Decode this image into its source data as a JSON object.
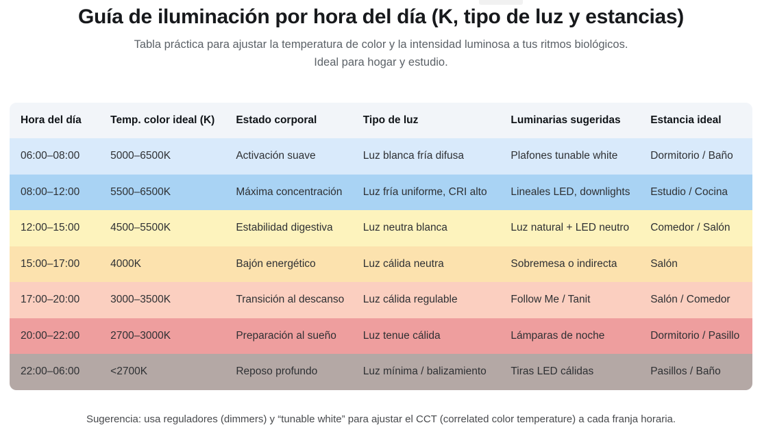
{
  "page": {
    "title": "Guía de iluminación por hora del día (K, tipo de luz y estancias)",
    "subtitle_line1": "Tabla práctica para ajustar la temperatura de color y la intensidad luminosa a tus ritmos biológicos.",
    "subtitle_line2": "Ideal para hogar y estudio.",
    "footnote": "Sugerencia: usa reguladores (dimmers) y “tunable white” para ajustar el CCT (correlated color temperature) a cada franja horaria."
  },
  "table": {
    "header_bg": "#f2f5f9",
    "headers": [
      "Hora del día",
      "Temp. color ideal (K)",
      "Estado corporal",
      "Tipo de luz",
      "Luminarias sugeridas",
      "Estancia ideal"
    ],
    "rows": [
      {
        "bg": "#d9eafb",
        "cells": [
          "06:00–08:00",
          "5000–6500K",
          "Activación suave",
          "Luz blanca fría difusa",
          "Plafones tunable white",
          "Dormitorio / Baño"
        ]
      },
      {
        "bg": "#a9d3f4",
        "cells": [
          "08:00–12:00",
          "5500–6500K",
          "Máxima concentración",
          "Luz fría uniforme, CRI alto",
          "Lineales LED, downlights",
          "Estudio / Cocina"
        ]
      },
      {
        "bg": "#fdf3bd",
        "cells": [
          "12:00–15:00",
          "4500–5500K",
          "Estabilidad digestiva",
          "Luz neutra blanca",
          "Luz natural + LED neutro",
          "Comedor / Salón"
        ]
      },
      {
        "bg": "#fce2ae",
        "cells": [
          "15:00–17:00",
          "4000K",
          "Bajón energético",
          "Luz cálida neutra",
          "Sobremesa o indirecta",
          "Salón"
        ]
      },
      {
        "bg": "#fbcfc0",
        "cells": [
          "17:00–20:00",
          "3000–3500K",
          "Transición al descanso",
          "Luz cálida regulable",
          "Follow Me / Tanit",
          "Salón / Comedor"
        ]
      },
      {
        "bg": "#ee9e9e",
        "cells": [
          "20:00–22:00",
          "2700–3000K",
          "Preparación al sueño",
          "Luz tenue cálida",
          "Lámparas de noche",
          "Dormitorio / Pasillo"
        ]
      },
      {
        "bg": "#b4a8a5",
        "cells": [
          "22:00–06:00",
          "<2700K",
          "Reposo profundo",
          "Luz mínima / balizamiento",
          "Tiras LED cálidas",
          "Pasillos / Baño"
        ]
      }
    ]
  }
}
